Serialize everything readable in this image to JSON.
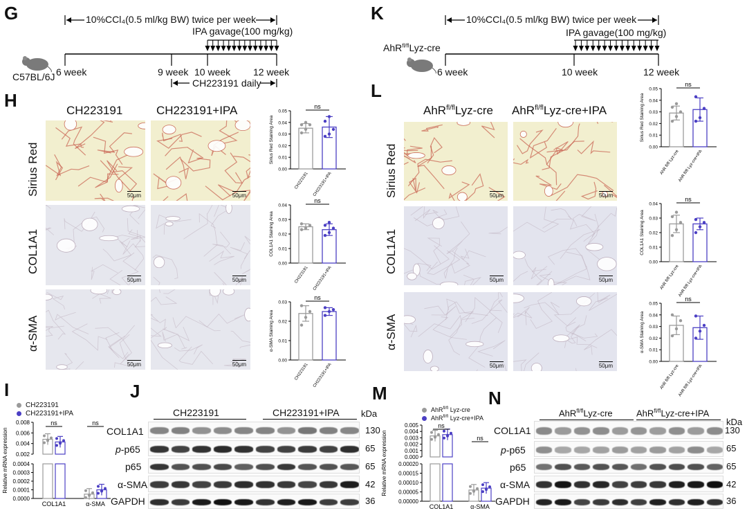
{
  "colors": {
    "grey": "#9a9a9a",
    "blue": "#4b3fc4",
    "sirius_bg": "#f2efcf",
    "sirius_line": "#c8604e",
    "ihc_bg": "#e6e7ee",
    "ihc_line": "#b9a9b8"
  },
  "panel_labels": {
    "G": "G",
    "H": "H",
    "I": "I",
    "J": "J",
    "K": "K",
    "L": "L",
    "M": "M",
    "N": "N"
  },
  "timeline_G": {
    "top_text": "10%CCl₄(0.5 ml/kg BW) twice per week",
    "ipa_text": "IPA gavage(100 mg/kg)",
    "mouse": "C57BL/6J",
    "t6": "6 week",
    "t9": "9 week",
    "t10": "10 week",
    "t12": "12 week",
    "bottom_text": "CH223191 daily"
  },
  "timeline_K": {
    "top_text": "10%CCl₄(0.5 ml/kg BW) twice per week",
    "ipa_text": "IPA gavage(100 mg/kg)",
    "mouse_pre": "AhR",
    "mouse_sup": "fl/fl",
    "mouse_post": "Lyz-cre",
    "t6": "6 week",
    "t10": "10 week",
    "t12": "12 week"
  },
  "panel_H": {
    "col1": "CH223191",
    "col2": "CH223191+IPA",
    "rows": [
      "Sirius Red",
      "COL1A1",
      "α-SMA"
    ],
    "scale": "50μm"
  },
  "panel_L": {
    "col1_pre": "AhR",
    "col1_sup": "fl/fl",
    "col1_post": "Lyz-cre",
    "col2_pre": "AhR",
    "col2_sup": "fl/fl",
    "col2_post": "Lyz-cre+IPA",
    "rows": [
      "Sirius Red",
      "COL1A1",
      "α-SMA"
    ],
    "scale": "50μm"
  },
  "chart_data": [
    {
      "id": "H1",
      "type": "bar",
      "ylabel": "Sirius Red Staining Area",
      "ylim": [
        0,
        0.05
      ],
      "ticks": [
        "0.00",
        "0.01",
        "0.02",
        "0.03",
        "0.04",
        "0.05"
      ],
      "categories": [
        "CH223191",
        "CH223191+IPA"
      ],
      "values": [
        0.035,
        0.036
      ],
      "sd": [
        0.004,
        0.009
      ],
      "points": [
        [
          0.031,
          0.034,
          0.038,
          0.038,
          0.04
        ],
        [
          0.028,
          0.03,
          0.034,
          0.041,
          0.045
        ]
      ],
      "annotation": "ns"
    },
    {
      "id": "H2",
      "type": "bar",
      "ylabel": "COL1A1 Staining Area",
      "ylim": [
        0,
        0.04
      ],
      "ticks": [
        "0.00",
        "0.01",
        "0.02",
        "0.03",
        "0.04"
      ],
      "categories": [
        "CH223191",
        "CH223191+IPA"
      ],
      "values": [
        0.025,
        0.023
      ],
      "sd": [
        0.002,
        0.004
      ],
      "points": [
        [
          0.023,
          0.024,
          0.026,
          0.027
        ],
        [
          0.019,
          0.021,
          0.024,
          0.026,
          0.028
        ]
      ],
      "annotation": "ns"
    },
    {
      "id": "H3",
      "type": "bar",
      "ylabel": "α-SMA Staining Area",
      "ylim": [
        0,
        0.03
      ],
      "ticks": [
        "0.00",
        "0.01",
        "0.02",
        "0.03"
      ],
      "categories": [
        "CH223191",
        "CH223191+IPA"
      ],
      "values": [
        0.024,
        0.025
      ],
      "sd": [
        0.004,
        0.002
      ],
      "points": [
        [
          0.018,
          0.022,
          0.025,
          0.028
        ],
        [
          0.023,
          0.025,
          0.026,
          0.027
        ]
      ],
      "annotation": "ns"
    },
    {
      "id": "L1",
      "type": "bar",
      "ylabel": "Sirius Red Staining Area",
      "ylim": [
        0,
        0.05
      ],
      "ticks": [
        "0.00",
        "0.01",
        "0.02",
        "0.03",
        "0.04",
        "0.05"
      ],
      "categories": [
        "AhR fl/fl Lyz-cre",
        "AhR fl/fl Lyz-cre+IPA"
      ],
      "values": [
        0.029,
        0.032
      ],
      "sd": [
        0.006,
        0.01
      ],
      "points": [
        [
          0.022,
          0.026,
          0.03,
          0.034,
          0.037
        ],
        [
          0.022,
          0.025,
          0.033,
          0.043
        ]
      ],
      "annotation": "ns"
    },
    {
      "id": "L2",
      "type": "bar",
      "ylabel": "COL1A1 Staining Area",
      "ylim": [
        0,
        0.04
      ],
      "ticks": [
        "0.00",
        "0.01",
        "0.02",
        "0.03",
        "0.04"
      ],
      "categories": [
        "AhR fl/fl Lyz-cre",
        "AhR fl/fl Lyz-cre+IPA"
      ],
      "values": [
        0.026,
        0.026
      ],
      "sd": [
        0.006,
        0.004
      ],
      "points": [
        [
          0.018,
          0.022,
          0.027,
          0.031,
          0.034
        ],
        [
          0.02,
          0.024,
          0.027,
          0.029
        ]
      ],
      "annotation": "ns"
    },
    {
      "id": "L3",
      "type": "bar",
      "ylabel": "α-SMA Staining Area",
      "ylim": [
        0,
        0.05
      ],
      "ticks": [
        "0.00",
        "0.01",
        "0.02",
        "0.03",
        "0.04",
        "0.05"
      ],
      "categories": [
        "AhR fl/fl Lyz-cre",
        "AhR fl/fl Lyz-cre+IPA"
      ],
      "values": [
        0.031,
        0.029
      ],
      "sd": [
        0.008,
        0.01
      ],
      "points": [
        [
          0.022,
          0.028,
          0.035,
          0.04
        ],
        [
          0.02,
          0.026,
          0.031,
          0.039
        ]
      ],
      "annotation": "ns"
    },
    {
      "id": "I",
      "type": "bar",
      "ylabel": "Relative mRNA expression",
      "categories": [
        "COL1A1",
        "α-SMA"
      ],
      "legend": [
        "CH223191",
        "CH223191+IPA"
      ],
      "upper_ticks": [
        "0.002",
        "0.004",
        "0.006",
        "0.008"
      ],
      "lower_ticks": [
        "0.0000",
        "0.0001",
        "0.0002",
        "0.0003",
        "0.0004"
      ],
      "series": [
        {
          "name": "CH223191",
          "values": [
            0.0048,
            5e-05
          ]
        },
        {
          "name": "CH223191+IPA",
          "values": [
            0.0043,
            0.0001
          ]
        }
      ],
      "annotation": "ns"
    },
    {
      "id": "M",
      "type": "bar",
      "ylabel": "Relative mRNA expression",
      "categories": [
        "COL1A1",
        "α-SMA"
      ],
      "legend": [
        "AhR fl/fl Lyz-cre",
        "AhR fl/fl Lyz-cre+IPA"
      ],
      "upper_ticks": [
        "0.000",
        "0.001",
        "0.002",
        "0.003",
        "0.004",
        "0.005"
      ],
      "lower_ticks": [
        "0.00000",
        "0.00005",
        "0.00010",
        "0.00015",
        "0.00020"
      ],
      "series": [
        {
          "name": "AhR fl/fl Lyz-cre",
          "values": [
            0.0033,
            6e-05
          ]
        },
        {
          "name": "AhR fl/fl Lyz-cre+IPA",
          "values": [
            0.0035,
            7e-05
          ]
        }
      ],
      "annotation": "ns"
    }
  ],
  "panel_I": {
    "legend1": "CH223191",
    "legend2": "CH223191+IPA",
    "ylabel": "Relative mRNA expression",
    "x1": "COL1A1",
    "x2": "α-SMA",
    "ns": "ns"
  },
  "panel_M": {
    "legend1_pre": "AhR",
    "legend1_sup": "fl/fl",
    "legend1_post": " Lyz-cre",
    "legend2_pre": "AhR",
    "legend2_sup": "fl/fl",
    "legend2_post": " Lyz-cre+IPA",
    "ylabel": "Relative mRNA expression",
    "x1": "COL1A1",
    "x2": "α-SMA",
    "ns": "ns"
  },
  "panel_J": {
    "group1": "CH223191",
    "group2": "CH223191+IPA",
    "kda": "kDa",
    "rows": [
      {
        "label": "COL1A1",
        "kda": "130"
      },
      {
        "label_pre": "p",
        "label_post": "-p65",
        "kda": "65"
      },
      {
        "label": "p65",
        "kda": "65"
      },
      {
        "label": "α-SMA",
        "kda": "42"
      },
      {
        "label": "GAPDH",
        "kda": "36"
      }
    ]
  },
  "panel_N": {
    "group1_pre": "AhR",
    "group1_sup": "fl/fl",
    "group1_post": "Lyz-cre",
    "group2_pre": "AhR",
    "group2_sup": "fl/fl",
    "group2_post": "Lyz-cre+IPA",
    "kda": "kDa",
    "rows": [
      {
        "label": "COL1A1",
        "kda": "130"
      },
      {
        "label_pre": "p",
        "label_post": "-p65",
        "kda": "65"
      },
      {
        "label": "p65",
        "kda": "65"
      },
      {
        "label": "α-SMA",
        "kda": "42"
      },
      {
        "label": "GAPDH",
        "kda": "36"
      }
    ]
  }
}
